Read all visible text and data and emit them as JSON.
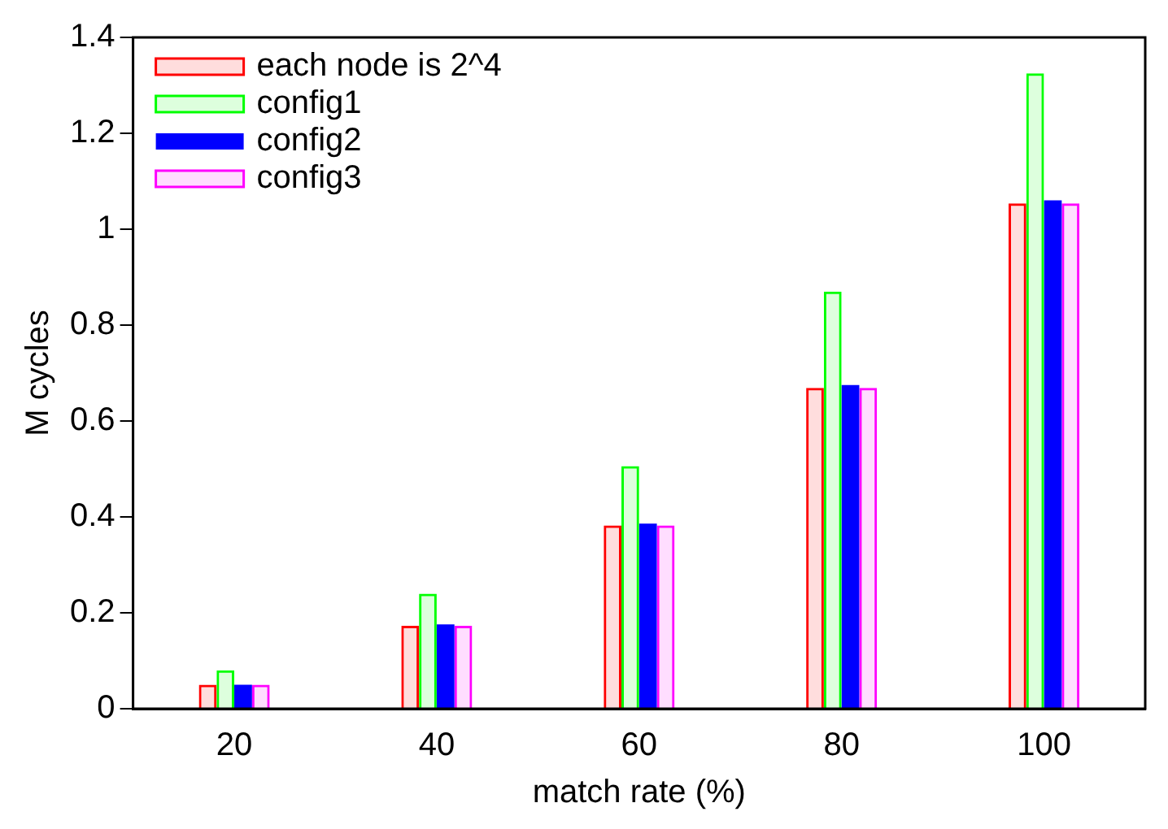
{
  "chart_data": {
    "type": "bar",
    "xlabel": "match rate (%)",
    "ylabel": "M cycles",
    "categories": [
      "20",
      "40",
      "60",
      "80",
      "100"
    ],
    "series": [
      {
        "name": "each node is 2^4",
        "color": "#ff0000",
        "values": [
          0.05,
          0.173,
          0.382,
          0.669,
          1.054
        ]
      },
      {
        "name": "config1",
        "color": "#00ff00",
        "values": [
          0.08,
          0.24,
          0.506,
          0.87,
          1.325
        ]
      },
      {
        "name": "config2",
        "color": "#0000ff",
        "values": [
          0.05,
          0.176,
          0.386,
          0.675,
          1.06
        ]
      },
      {
        "name": "config3",
        "color": "#ff00ff",
        "values": [
          0.05,
          0.173,
          0.382,
          0.669,
          1.054
        ]
      }
    ],
    "ylim": [
      0,
      1.4
    ],
    "yticks": [
      0,
      0.2,
      0.4,
      0.6,
      0.8,
      1,
      1.2,
      1.4
    ],
    "grid": false,
    "legend": "top left"
  }
}
